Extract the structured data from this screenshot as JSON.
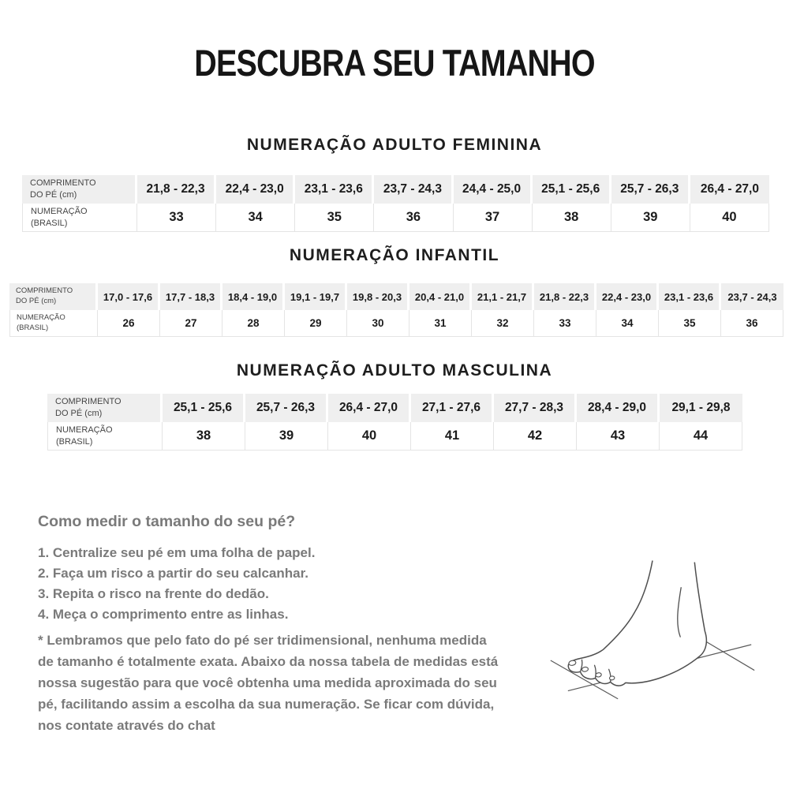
{
  "page": {
    "title": "DESCUBRA SEU TAMANHO"
  },
  "table_labels": {
    "length_line1": "COMPRIMENTO",
    "length_line2": "DO PÉ (cm)",
    "size_line1": "NUMERAÇÃO",
    "size_line2": "(BRASIL)"
  },
  "sections": [
    {
      "subtitle": "NUMERAÇÃO ADULTO FEMININA",
      "foot_lengths_cm": [
        "21,8 - 22,3",
        "22,4 - 23,0",
        "23,1 - 23,6",
        "23,7 - 24,3",
        "24,4 - 25,0",
        "25,1 - 25,6",
        "25,7 - 26,3",
        "26,4 - 27,0"
      ],
      "sizes_brazil": [
        "33",
        "34",
        "35",
        "36",
        "37",
        "38",
        "39",
        "40"
      ]
    },
    {
      "subtitle": "NUMERAÇÃO INFANTIL",
      "foot_lengths_cm": [
        "17,0 - 17,6",
        "17,7 - 18,3",
        "18,4 - 19,0",
        "19,1 - 19,7",
        "19,8 - 20,3",
        "20,4 - 21,0",
        "21,1 - 21,7",
        "21,8 - 22,3",
        "22,4 - 23,0",
        "23,1 - 23,6",
        "23,7 - 24,3"
      ],
      "sizes_brazil": [
        "26",
        "27",
        "28",
        "29",
        "30",
        "31",
        "32",
        "33",
        "34",
        "35",
        "36"
      ]
    },
    {
      "subtitle": "NUMERAÇÃO ADULTO MASCULINA",
      "foot_lengths_cm": [
        "25,1 - 25,6",
        "25,7 - 26,3",
        "26,4 - 27,0",
        "27,1 - 27,6",
        "27,7 - 28,3",
        "28,4 - 29,0",
        "29,1 - 29,8"
      ],
      "sizes_brazil": [
        "38",
        "39",
        "40",
        "41",
        "42",
        "43",
        "44"
      ]
    }
  ],
  "how_to": {
    "heading": "Como medir o tamanho do seu pé?",
    "steps": [
      "1. Centralize seu pé em uma folha de papel.",
      "2. Faça um risco a partir do seu calcanhar.",
      "3. Repita o risco na frente do dedão.",
      "4. Meça o comprimento entre as linhas."
    ],
    "note": "* Lembramos que pelo fato do pé ser tridimensional, nenhuma medida de tamanho é totalmente exata. Abaixo da nossa tabela de medidas está nossa sugestão para que você obtenha uma medida aproximada do seu pé, facilitando assim a escolha da sua numeração. Se ficar com dúvida, nos contate através do chat"
  },
  "icons": {
    "foot_illustration": "foot-line-drawing"
  },
  "colors": {
    "header_bg": "#efefef",
    "cell_border": "#e4e4e4",
    "text_dark": "#1b1b1b",
    "text_gray": "#7a7a7a"
  }
}
